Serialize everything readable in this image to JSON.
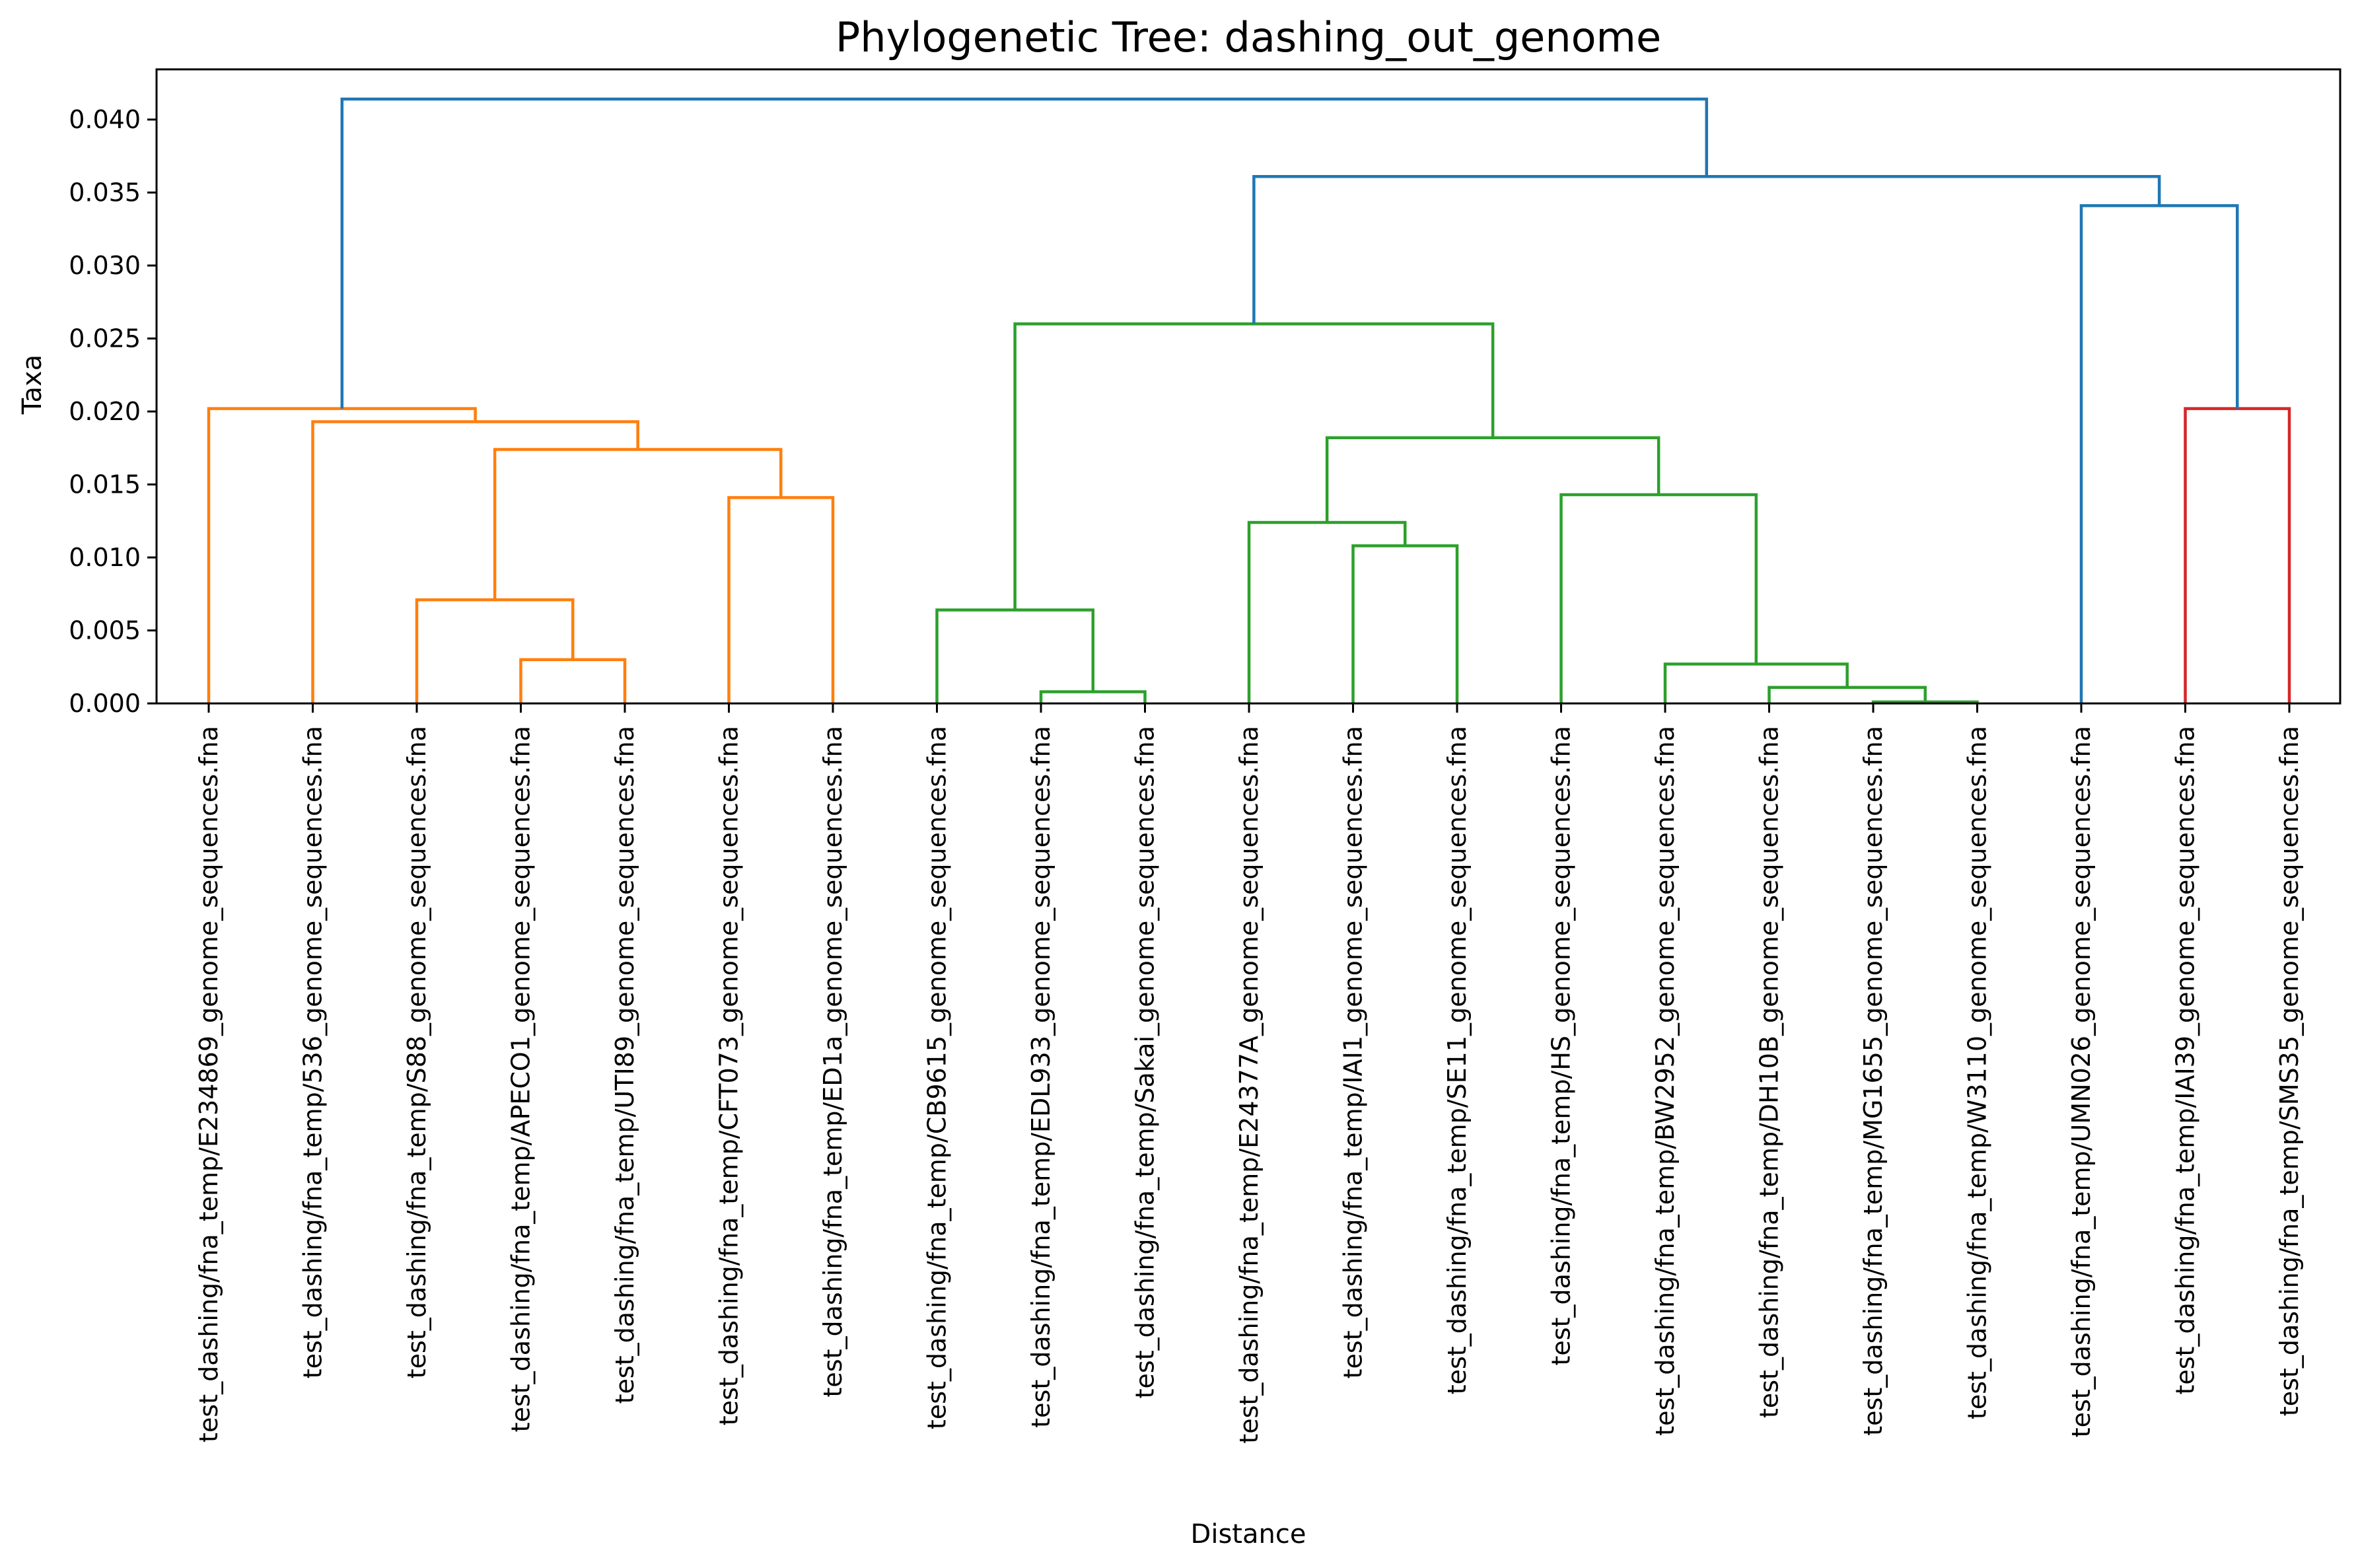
{
  "chart_data": {
    "type": "dendrogram",
    "title": "Phylogenetic Tree: dashing_out_genome",
    "xlabel": "Distance",
    "ylabel": "Taxa",
    "ylim": [
      0,
      0.0435
    ],
    "yticks": [
      {
        "value": 0.0,
        "label": "0.000"
      },
      {
        "value": 0.005,
        "label": "0.005"
      },
      {
        "value": 0.01,
        "label": "0.010"
      },
      {
        "value": 0.015,
        "label": "0.015"
      },
      {
        "value": 0.02,
        "label": "0.020"
      },
      {
        "value": 0.025,
        "label": "0.025"
      },
      {
        "value": 0.03,
        "label": "0.030"
      },
      {
        "value": 0.035,
        "label": "0.035"
      },
      {
        "value": 0.04,
        "label": "0.040"
      }
    ],
    "grid": false,
    "colors": {
      "C0": "#1f77b4",
      "C1": "#ff7f0e",
      "C2": "#2ca02c",
      "C3": "#d62728"
    },
    "leaves": [
      "test_dashing/fna_temp/E234869_genome_sequences.fna",
      "test_dashing/fna_temp/536_genome_sequences.fna",
      "test_dashing/fna_temp/S88_genome_sequences.fna",
      "test_dashing/fna_temp/APECO1_genome_sequences.fna",
      "test_dashing/fna_temp/UTI89_genome_sequences.fna",
      "test_dashing/fna_temp/CFT073_genome_sequences.fna",
      "test_dashing/fna_temp/ED1a_genome_sequences.fna",
      "test_dashing/fna_temp/CB9615_genome_sequences.fna",
      "test_dashing/fna_temp/EDL933_genome_sequences.fna",
      "test_dashing/fna_temp/Sakai_genome_sequences.fna",
      "test_dashing/fna_temp/E24377A_genome_sequences.fna",
      "test_dashing/fna_temp/IAI1_genome_sequences.fna",
      "test_dashing/fna_temp/SE11_genome_sequences.fna",
      "test_dashing/fna_temp/HS_genome_sequences.fna",
      "test_dashing/fna_temp/BW2952_genome_sequences.fna",
      "test_dashing/fna_temp/DH10B_genome_sequences.fna",
      "test_dashing/fna_temp/MG1655_genome_sequences.fna",
      "test_dashing/fna_temp/W3110_genome_sequences.fna",
      "test_dashing/fna_temp/UMN026_genome_sequences.fna",
      "test_dashing/fna_temp/IAI39_genome_sequences.fna",
      "test_dashing/fna_temp/SMS35_genome_sequences.fna"
    ],
    "merges": [
      {
        "left": "L3",
        "right": "L4",
        "height": 0.003,
        "color": "C1"
      },
      {
        "left": "L2",
        "right": "M0",
        "height": 0.0071,
        "color": "C1"
      },
      {
        "left": "L5",
        "right": "L6",
        "height": 0.0141,
        "color": "C1"
      },
      {
        "left": "M1",
        "right": "M2",
        "height": 0.0174,
        "color": "C1"
      },
      {
        "left": "L1",
        "right": "M3",
        "height": 0.0193,
        "color": "C1"
      },
      {
        "left": "L0",
        "right": "M4",
        "height": 0.0202,
        "color": "C1"
      },
      {
        "left": "L8",
        "right": "L9",
        "height": 0.0008,
        "color": "C2"
      },
      {
        "left": "L7",
        "right": "M6",
        "height": 0.0064,
        "color": "C2"
      },
      {
        "left": "L11",
        "right": "L12",
        "height": 0.0108,
        "color": "C2"
      },
      {
        "left": "L10",
        "right": "M8",
        "height": 0.0124,
        "color": "C2"
      },
      {
        "left": "L16",
        "right": "L17",
        "height": 0.0001,
        "color": "C2"
      },
      {
        "left": "L15",
        "right": "M10",
        "height": 0.0011,
        "color": "C2"
      },
      {
        "left": "L14",
        "right": "M11",
        "height": 0.0027,
        "color": "C2"
      },
      {
        "left": "L13",
        "right": "M12",
        "height": 0.0143,
        "color": "C2"
      },
      {
        "left": "M9",
        "right": "M13",
        "height": 0.0182,
        "color": "C2"
      },
      {
        "left": "M7",
        "right": "M14",
        "height": 0.026,
        "color": "C2"
      },
      {
        "left": "L19",
        "right": "L20",
        "height": 0.0202,
        "color": "C3"
      },
      {
        "left": "L18",
        "right": "M16",
        "height": 0.0341,
        "color": "C0"
      },
      {
        "left": "M15",
        "right": "M17",
        "height": 0.0361,
        "color": "C0"
      },
      {
        "left": "M5",
        "right": "M18",
        "height": 0.0414,
        "color": "C0"
      }
    ]
  }
}
